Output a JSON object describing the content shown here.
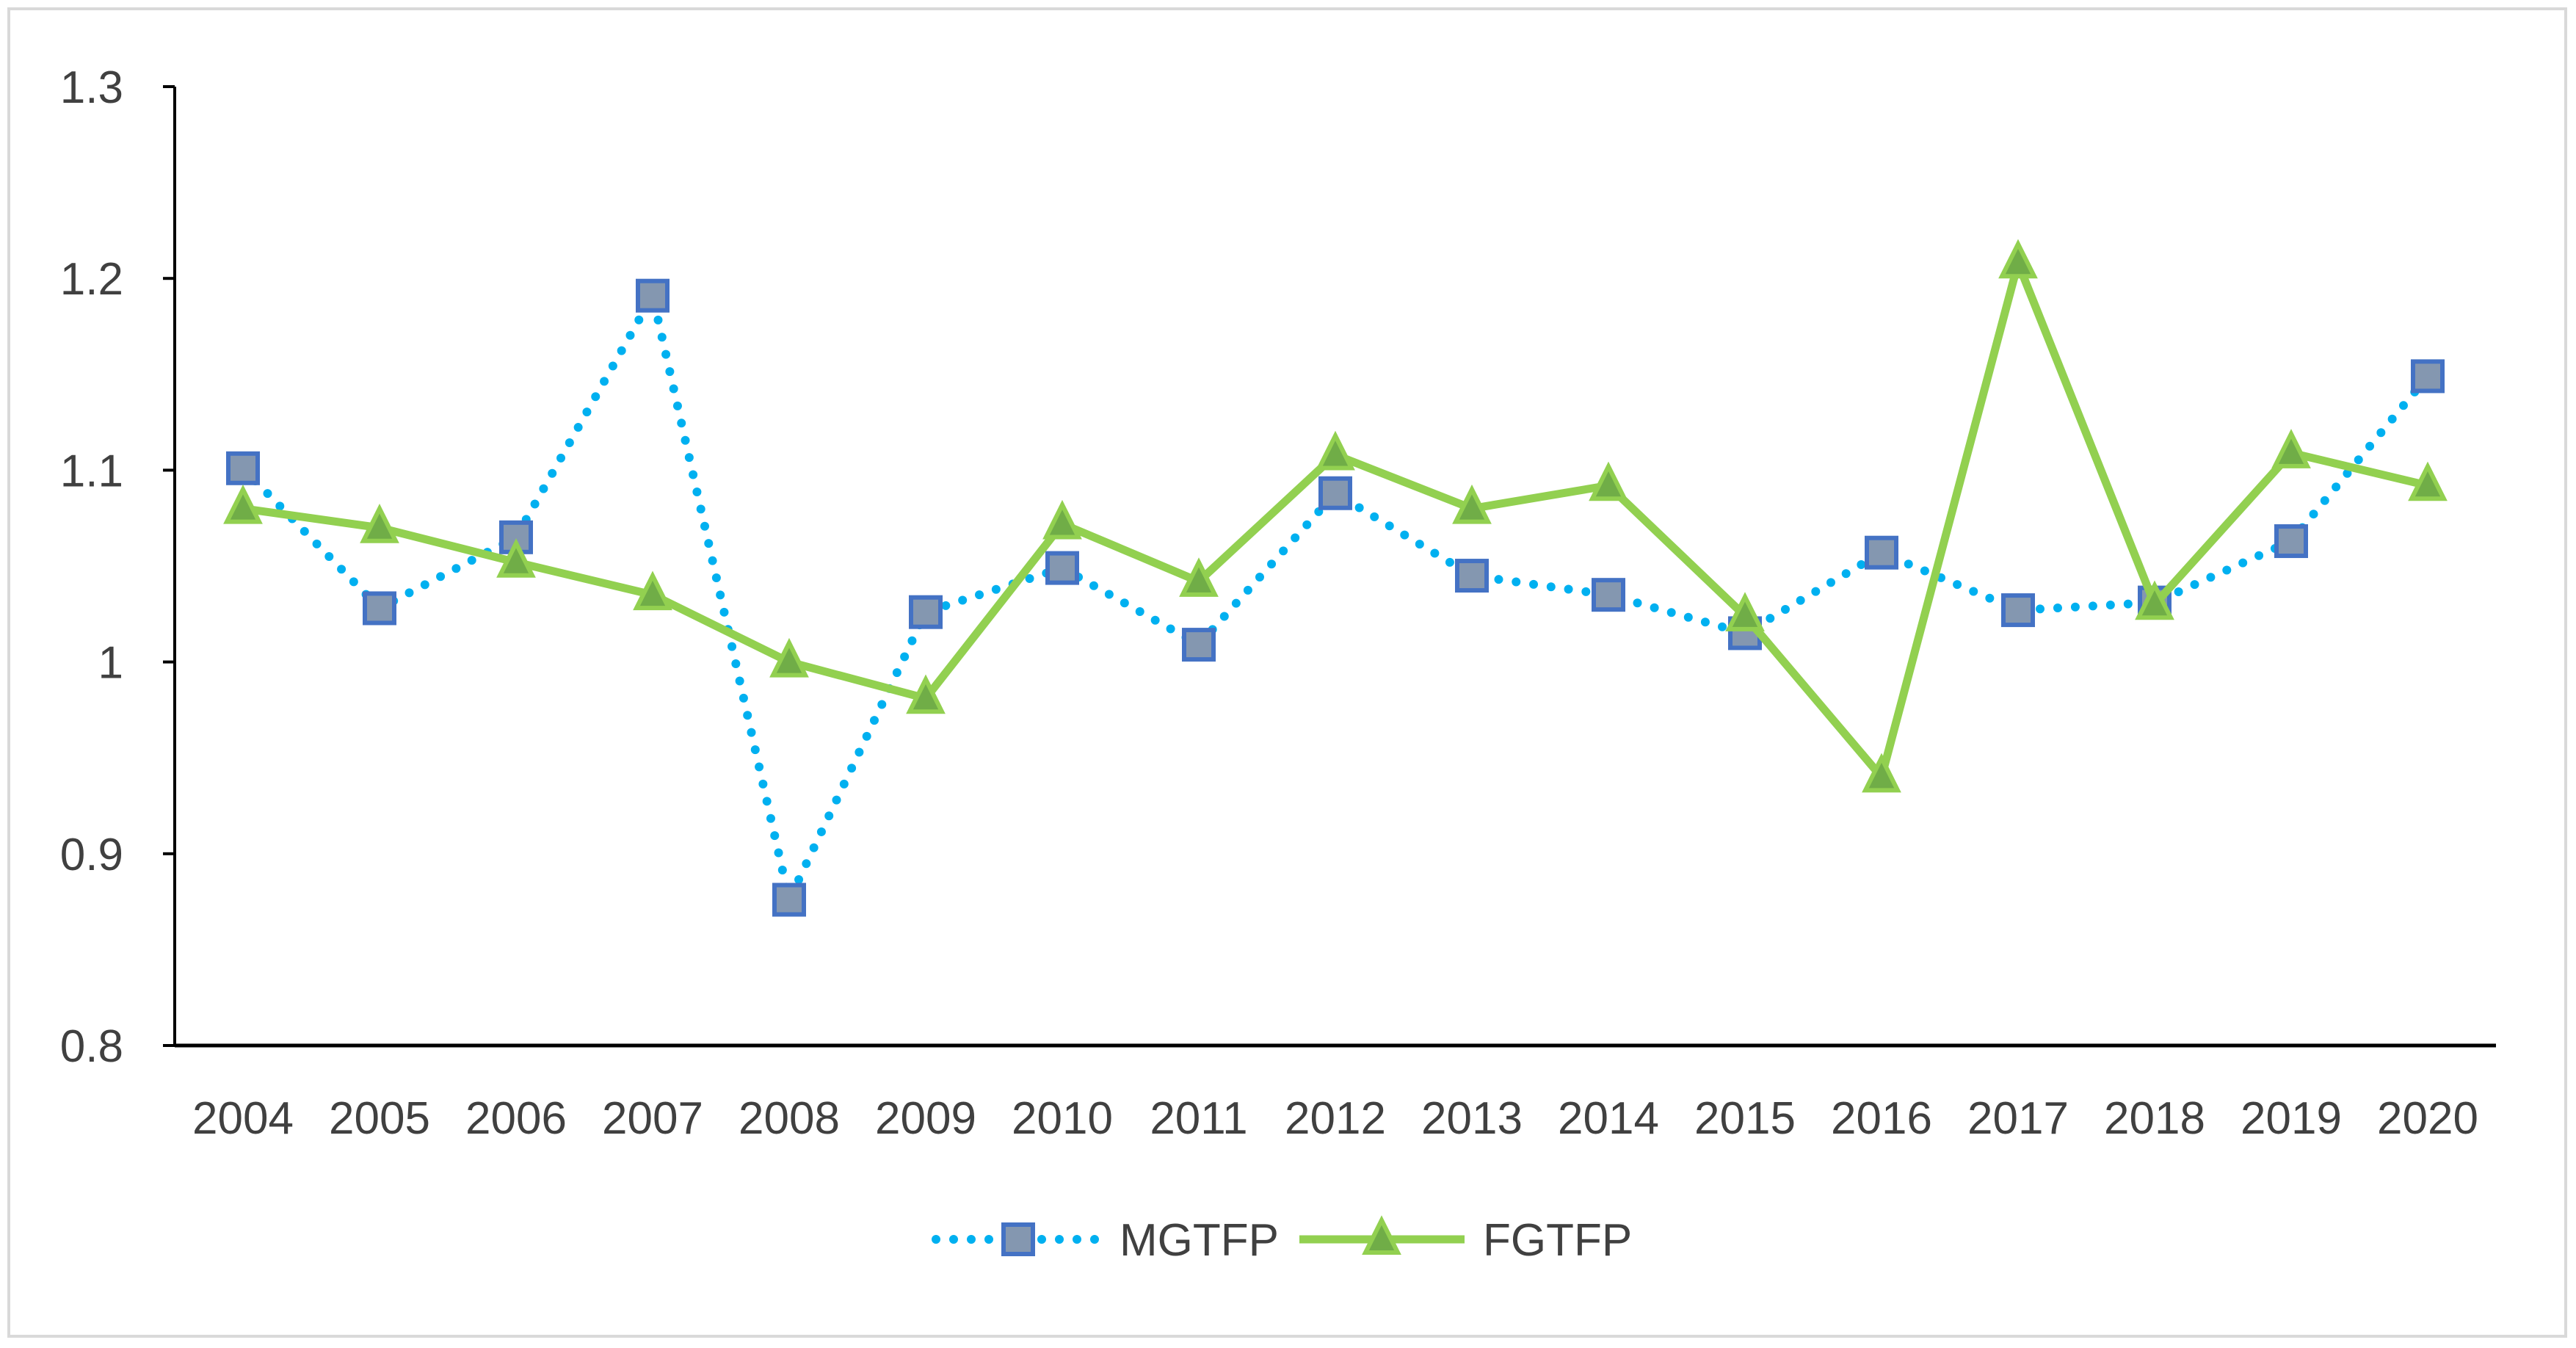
{
  "chart_data": {
    "type": "line",
    "title": "",
    "xlabel": "",
    "ylabel": "",
    "ylim": [
      0.8,
      1.3
    ],
    "yticks": [
      "0.8",
      "0.9",
      "1",
      "1.1",
      "1.2",
      "1.3"
    ],
    "categories": [
      "2004",
      "2005",
      "2006",
      "2007",
      "2008",
      "2009",
      "2010",
      "2011",
      "2012",
      "2013",
      "2014",
      "2015",
      "2016",
      "2017",
      "2018",
      "2019",
      "2020"
    ],
    "legend_position": "bottom",
    "grid": false,
    "series": [
      {
        "name": "MGTFP",
        "style": "dotted",
        "marker": "square",
        "line_color": "#00b0f0",
        "marker_fill": "#8497b0",
        "marker_edge": "#4472c4",
        "values": [
          1.101,
          1.028,
          1.065,
          1.191,
          0.876,
          1.026,
          1.049,
          1.009,
          1.088,
          1.045,
          1.035,
          1.015,
          1.057,
          1.027,
          1.031,
          1.063,
          1.149
        ]
      },
      {
        "name": "FGTFP",
        "style": "solid",
        "marker": "triangle",
        "line_color": "#92d050",
        "marker_fill": "#70ad47",
        "marker_edge": "#92d050",
        "values": [
          1.08,
          1.07,
          1.052,
          1.035,
          1.0,
          0.981,
          1.072,
          1.042,
          1.108,
          1.08,
          1.092,
          1.024,
          0.94,
          1.208,
          1.03,
          1.109,
          1.092
        ]
      }
    ]
  }
}
